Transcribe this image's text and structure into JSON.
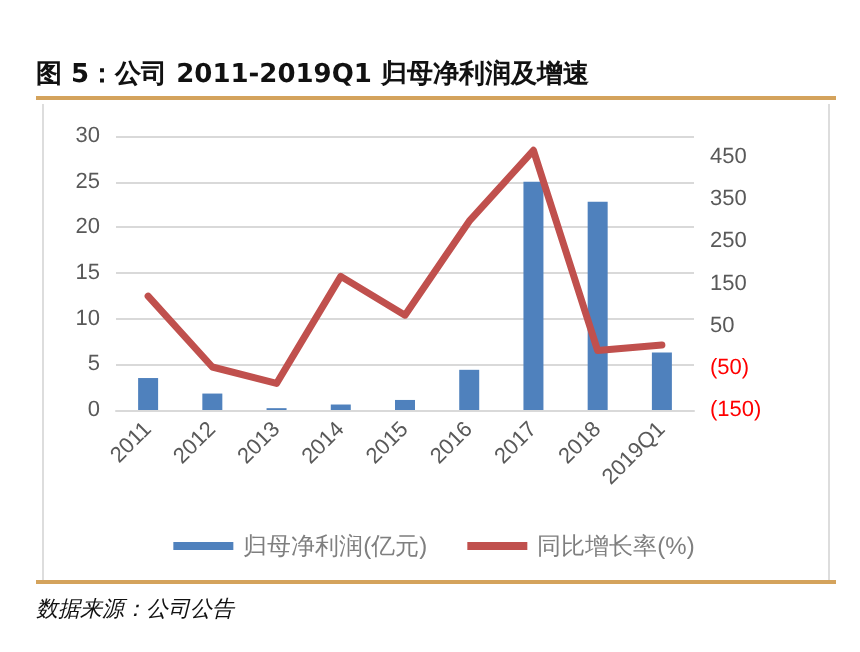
{
  "chart_data": {
    "type": "bar",
    "title": "图 5：公司 2011-2019Q1 归母净利润及增速",
    "categories": [
      "2011",
      "2012",
      "2013",
      "2014",
      "2015",
      "2016",
      "2017",
      "2018",
      "2019Q1"
    ],
    "series": [
      {
        "name": "归母净利润(亿元)",
        "color": "#4f81bd",
        "values": [
          3.5,
          1.8,
          0.2,
          0.6,
          1.1,
          4.4,
          25.0,
          22.8,
          6.3
        ]
      },
      {
        "name": "同比增长率(%)",
        "type": "line",
        "axis": "y2",
        "color": "#c0504d",
        "values": [
          120,
          -48,
          -87,
          167,
          75,
          298,
          466,
          -9,
          4
        ]
      }
    ],
    "ylim": [
      0,
      30
    ],
    "yticks": [
      0,
      5,
      10,
      15,
      20,
      25,
      30
    ],
    "y2lim": [
      -150,
      500
    ],
    "y2ticks": [
      {
        "value": -150,
        "label": "(150)"
      },
      {
        "value": -50,
        "label": "(50)"
      },
      50,
      150,
      250,
      350,
      450
    ],
    "grid": "y",
    "legend": "bottom",
    "marker": "none",
    "annotations": [
      "数据来源：公司公告"
    ]
  }
}
